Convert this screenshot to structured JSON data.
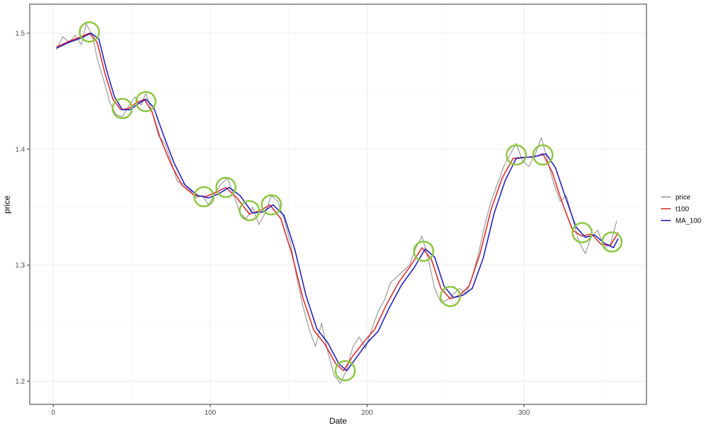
{
  "chart_data": {
    "type": "line",
    "xlabel": "Date",
    "ylabel": "price",
    "xlim": [
      -15,
      378
    ],
    "ylim": [
      1.18,
      1.525
    ],
    "x_ticks": [
      0,
      100,
      200,
      300
    ],
    "x_tick_labels": [
      "0",
      "100",
      "200",
      "300"
    ],
    "y_ticks": [
      1.2,
      1.3,
      1.4,
      1.5
    ],
    "y_tick_labels": [
      "1.2",
      "1.3",
      "1.4",
      "1.5"
    ],
    "grid": true,
    "legend_position": "right",
    "series": [
      {
        "name": "price",
        "color": "#999999",
        "x": [
          2,
          6,
          10,
          14,
          18,
          21,
          25,
          28,
          32,
          36,
          40,
          44,
          48,
          52,
          56,
          59,
          63,
          67,
          71,
          75,
          79,
          83,
          87,
          91,
          95,
          99,
          103,
          107,
          111,
          115,
          119,
          123,
          127,
          131,
          135,
          139,
          143,
          147,
          151,
          155,
          159,
          163,
          167,
          171,
          175,
          179,
          183,
          187,
          191,
          195,
          199,
          203,
          207,
          211,
          215,
          219,
          223,
          227,
          231,
          235,
          239,
          243,
          247,
          251,
          255,
          259,
          263,
          267,
          271,
          275,
          279,
          283,
          287,
          291,
          295,
          299,
          303,
          307,
          311,
          315,
          319,
          323,
          327,
          331,
          335,
          339,
          343,
          347,
          351,
          355,
          359
        ],
        "y": [
          1.486,
          1.497,
          1.492,
          1.498,
          1.49,
          1.508,
          1.498,
          1.478,
          1.46,
          1.44,
          1.43,
          1.428,
          1.437,
          1.445,
          1.438,
          1.448,
          1.432,
          1.412,
          1.405,
          1.39,
          1.372,
          1.37,
          1.365,
          1.358,
          1.36,
          1.352,
          1.362,
          1.37,
          1.375,
          1.36,
          1.345,
          1.34,
          1.35,
          1.335,
          1.345,
          1.36,
          1.355,
          1.34,
          1.32,
          1.29,
          1.265,
          1.245,
          1.23,
          1.25,
          1.225,
          1.205,
          1.198,
          1.21,
          1.23,
          1.238,
          1.228,
          1.245,
          1.26,
          1.27,
          1.285,
          1.29,
          1.295,
          1.3,
          1.315,
          1.325,
          1.305,
          1.28,
          1.268,
          1.27,
          1.275,
          1.28,
          1.275,
          1.29,
          1.31,
          1.335,
          1.355,
          1.37,
          1.385,
          1.395,
          1.405,
          1.39,
          1.385,
          1.395,
          1.41,
          1.39,
          1.37,
          1.355,
          1.36,
          1.34,
          1.32,
          1.31,
          1.325,
          1.33,
          1.315,
          1.318,
          1.338
        ]
      },
      {
        "name": "t100",
        "color": "#dd2c2c",
        "x": [
          2,
          10,
          18,
          23,
          28,
          33,
          38,
          43,
          48,
          53,
          58,
          63,
          68,
          75,
          82,
          90,
          97,
          104,
          110,
          117,
          125,
          132,
          138,
          145,
          152,
          159,
          166,
          173,
          180,
          185,
          191,
          198,
          205,
          212,
          220,
          228,
          235,
          241,
          247,
          253,
          259,
          265,
          272,
          279,
          286,
          293,
          300,
          306,
          312,
          318,
          324,
          331,
          337,
          343,
          349,
          355,
          360
        ],
        "y": [
          1.488,
          1.493,
          1.497,
          1.5,
          1.492,
          1.465,
          1.443,
          1.434,
          1.435,
          1.44,
          1.443,
          1.432,
          1.41,
          1.387,
          1.369,
          1.36,
          1.359,
          1.363,
          1.367,
          1.358,
          1.344,
          1.347,
          1.352,
          1.34,
          1.31,
          1.272,
          1.244,
          1.232,
          1.215,
          1.209,
          1.222,
          1.234,
          1.245,
          1.265,
          1.285,
          1.3,
          1.315,
          1.305,
          1.28,
          1.271,
          1.274,
          1.282,
          1.31,
          1.348,
          1.375,
          1.392,
          1.393,
          1.393,
          1.396,
          1.38,
          1.355,
          1.33,
          1.325,
          1.327,
          1.318,
          1.317,
          1.328
        ]
      },
      {
        "name": "MA_100",
        "color": "#1f1fbf",
        "x": [
          2,
          10,
          18,
          24,
          29,
          34,
          39,
          44,
          49,
          54,
          59,
          64,
          70,
          77,
          84,
          92,
          99,
          106,
          112,
          119,
          127,
          134,
          140,
          147,
          154,
          161,
          168,
          175,
          182,
          187,
          193,
          200,
          207,
          214,
          222,
          230,
          237,
          243,
          249,
          255,
          261,
          267,
          274,
          281,
          288,
          295,
          302,
          308,
          314,
          320,
          326,
          333,
          339,
          345,
          351,
          357,
          360
        ],
        "y": [
          1.487,
          1.492,
          1.496,
          1.5,
          1.495,
          1.468,
          1.445,
          1.434,
          1.434,
          1.439,
          1.443,
          1.436,
          1.413,
          1.388,
          1.369,
          1.36,
          1.358,
          1.362,
          1.367,
          1.36,
          1.345,
          1.346,
          1.352,
          1.343,
          1.313,
          1.274,
          1.245,
          1.233,
          1.215,
          1.209,
          1.22,
          1.233,
          1.243,
          1.263,
          1.283,
          1.298,
          1.314,
          1.307,
          1.282,
          1.272,
          1.274,
          1.28,
          1.306,
          1.345,
          1.373,
          1.392,
          1.393,
          1.394,
          1.396,
          1.384,
          1.36,
          1.333,
          1.324,
          1.326,
          1.319,
          1.315,
          1.323
        ]
      }
    ],
    "highlights": {
      "color": "#8cc63f",
      "points": [
        {
          "x": 23,
          "y": 1.501
        },
        {
          "x": 44,
          "y": 1.435
        },
        {
          "x": 59,
          "y": 1.441
        },
        {
          "x": 96,
          "y": 1.359
        },
        {
          "x": 110,
          "y": 1.367
        },
        {
          "x": 125,
          "y": 1.347
        },
        {
          "x": 139,
          "y": 1.352
        },
        {
          "x": 186,
          "y": 1.209
        },
        {
          "x": 236,
          "y": 1.312
        },
        {
          "x": 253,
          "y": 1.273
        },
        {
          "x": 295,
          "y": 1.395
        },
        {
          "x": 312,
          "y": 1.395
        },
        {
          "x": 337,
          "y": 1.328
        },
        {
          "x": 356,
          "y": 1.32
        }
      ]
    }
  }
}
